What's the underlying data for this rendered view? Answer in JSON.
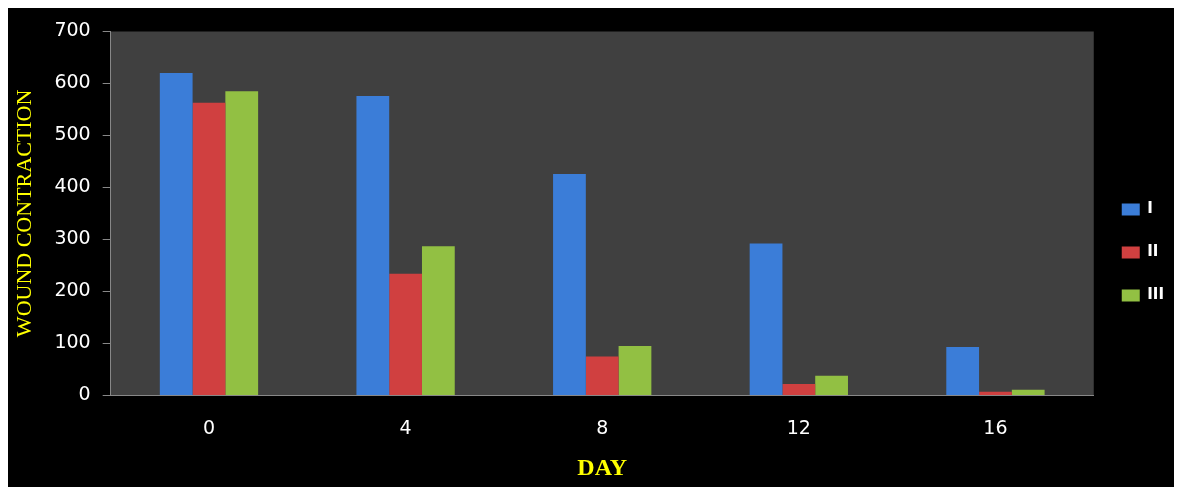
{
  "chart_data": {
    "type": "bar",
    "xlabel": "DAY",
    "ylabel": "WOUND CONTRACTION",
    "categories": [
      "0",
      "4",
      "8",
      "12",
      "16"
    ],
    "series": [
      {
        "name": "I",
        "color": "#3b7dd8",
        "values": [
          620,
          576,
          426,
          292,
          93
        ]
      },
      {
        "name": "II",
        "color": "#d04040",
        "values": [
          563,
          234,
          75,
          22,
          7
        ]
      },
      {
        "name": "III",
        "color": "#92c043",
        "values": [
          585,
          287,
          95,
          38,
          11
        ]
      }
    ],
    "ylim": [
      0,
      700
    ],
    "yticks": [
      0,
      100,
      200,
      300,
      400,
      500,
      600,
      700
    ],
    "grid": false,
    "legend": "right"
  }
}
